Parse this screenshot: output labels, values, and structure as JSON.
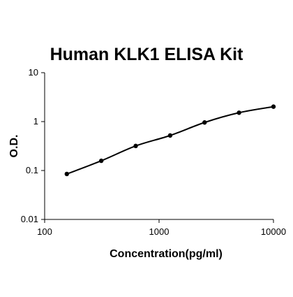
{
  "chart_data": {
    "type": "scatter",
    "title": "Human KLK1 ELISA Kit",
    "xlabel": "Concentration(pg/ml)",
    "ylabel": "O.D.",
    "x_scale": "log",
    "y_scale": "log",
    "xlim": [
      100,
      10000
    ],
    "ylim": [
      0.01,
      10
    ],
    "x_ticks": [
      "100",
      "1000",
      "10000"
    ],
    "y_ticks": [
      "10",
      "1",
      "0.1",
      "0.01"
    ],
    "grid": false,
    "legend": "none",
    "series": [
      {
        "x": [
          156.25,
          312.5,
          625,
          1250,
          2500,
          5000,
          10000
        ],
        "y": [
          0.085,
          0.158,
          0.318,
          0.52,
          0.96,
          1.52,
          2.02
        ],
        "marker": "circle",
        "fit_line": true,
        "color": "#000000"
      }
    ]
  }
}
